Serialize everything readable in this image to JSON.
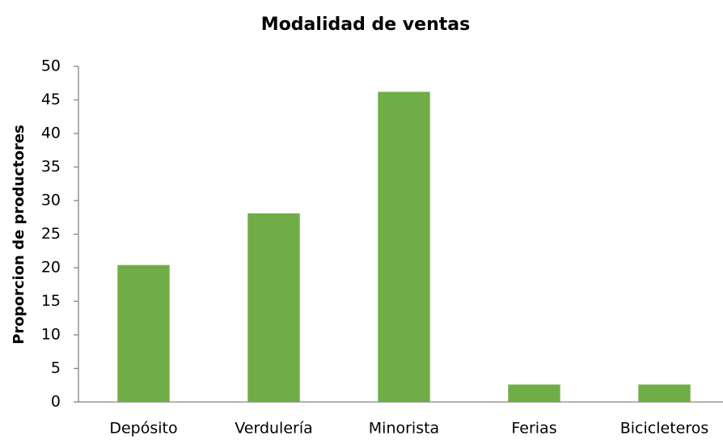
{
  "chart_data": {
    "type": "bar",
    "title": "Modalidad de ventas",
    "y_label": "Proporcion de productores",
    "categories": [
      "Depósito",
      "Verdulería",
      "Minorista",
      "Ferias",
      "Bicicleteros"
    ],
    "values": [
      20.4,
      28.1,
      46.2,
      2.6,
      2.6
    ],
    "color": "#70ad47",
    "ylim": [
      0,
      50
    ],
    "yticks": [
      0,
      5,
      10,
      15,
      20,
      25,
      30,
      35,
      40,
      45,
      50
    ],
    "grid": false
  }
}
